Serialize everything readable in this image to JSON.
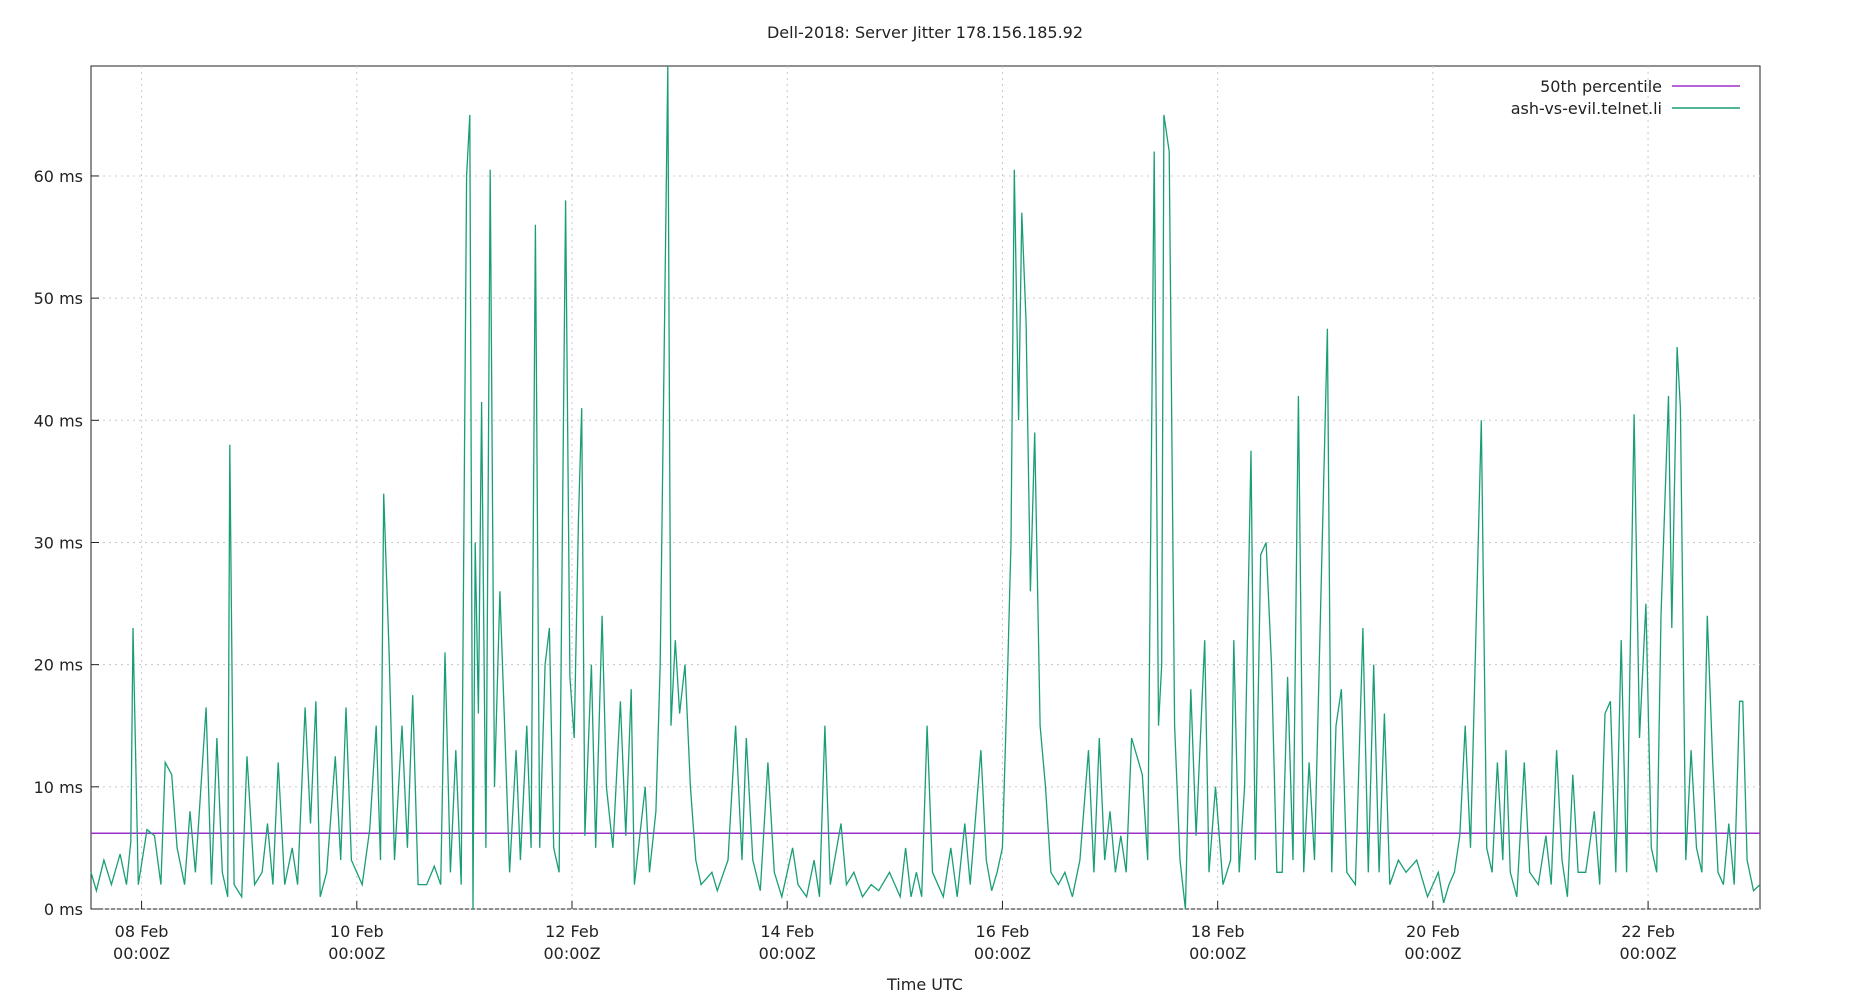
{
  "chart_data": {
    "type": "line",
    "title": "Dell-2018: Server Jitter 178.156.185.92",
    "x_label": "Time UTC",
    "xlim": [
      7.53,
      23.04
    ],
    "ylim": [
      0,
      69
    ],
    "grid": true,
    "legend": "top-right",
    "xticks": [
      {
        "value": 8,
        "label": "08 Feb\n00:00Z"
      },
      {
        "value": 10,
        "label": "10 Feb\n00:00Z"
      },
      {
        "value": 12,
        "label": "12 Feb\n00:00Z"
      },
      {
        "value": 14,
        "label": "14 Feb\n00:00Z"
      },
      {
        "value": 16,
        "label": "16 Feb\n00:00Z"
      },
      {
        "value": 18,
        "label": "18 Feb\n00:00Z"
      },
      {
        "value": 20,
        "label": "20 Feb\n00:00Z"
      },
      {
        "value": 22,
        "label": "22 Feb\n00:00Z"
      }
    ],
    "yticks": [
      {
        "value": 0,
        "label": "0 ms"
      },
      {
        "value": 10,
        "label": "10 ms"
      },
      {
        "value": 20,
        "label": "20 ms"
      },
      {
        "value": 30,
        "label": "30 ms"
      },
      {
        "value": 40,
        "label": "40 ms"
      },
      {
        "value": 50,
        "label": "50 ms"
      },
      {
        "value": 60,
        "label": "60 ms"
      }
    ],
    "percentile": {
      "name": "50th percentile",
      "color": "#9b30c8",
      "value": 6.2
    },
    "series": [
      {
        "name": "ash-vs-evil.telnet.li",
        "color": "#1a9e77",
        "x": [
          7.53,
          7.58,
          7.65,
          7.72,
          7.8,
          7.86,
          7.9,
          7.92,
          7.97,
          8.05,
          8.12,
          8.18,
          8.22,
          8.28,
          8.33,
          8.4,
          8.45,
          8.5,
          8.6,
          8.65,
          8.7,
          8.75,
          8.8,
          8.82,
          8.86,
          8.93,
          8.98,
          9.05,
          9.12,
          9.17,
          9.22,
          9.27,
          9.33,
          9.4,
          9.45,
          9.52,
          9.57,
          9.62,
          9.66,
          9.72,
          9.8,
          9.85,
          9.9,
          9.95,
          10.05,
          10.12,
          10.18,
          10.22,
          10.25,
          10.3,
          10.35,
          10.42,
          10.47,
          10.52,
          10.57,
          10.65,
          10.72,
          10.78,
          10.82,
          10.87,
          10.92,
          10.97,
          11.02,
          11.05,
          11.08,
          11.1,
          11.13,
          11.16,
          11.2,
          11.24,
          11.28,
          11.33,
          11.37,
          11.42,
          11.48,
          11.52,
          11.58,
          11.62,
          11.66,
          11.7,
          11.75,
          11.79,
          11.83,
          11.88,
          11.94,
          11.98,
          12.02,
          12.06,
          12.09,
          12.12,
          12.18,
          12.22,
          12.28,
          12.32,
          12.38,
          12.45,
          12.5,
          12.55,
          12.58,
          12.63,
          12.68,
          12.72,
          12.78,
          12.82,
          12.89,
          12.92,
          12.96,
          13.0,
          13.05,
          13.1,
          13.15,
          13.2,
          13.3,
          13.35,
          13.45,
          13.52,
          13.58,
          13.62,
          13.68,
          13.75,
          13.82,
          13.88,
          13.95,
          14.0,
          14.05,
          14.1,
          14.18,
          14.25,
          14.3,
          14.35,
          14.4,
          14.5,
          14.55,
          14.62,
          14.7,
          14.78,
          14.85,
          14.95,
          15.05,
          15.1,
          15.15,
          15.2,
          15.25,
          15.3,
          15.35,
          15.45,
          15.52,
          15.58,
          15.65,
          15.7,
          15.8,
          15.85,
          15.9,
          15.95,
          16.0,
          16.05,
          16.08,
          16.11,
          16.15,
          16.18,
          16.22,
          16.26,
          16.3,
          16.35,
          16.4,
          16.45,
          16.52,
          16.58,
          16.65,
          16.72,
          16.8,
          16.85,
          16.9,
          16.95,
          17.0,
          17.05,
          17.1,
          17.15,
          17.2,
          17.3,
          17.35,
          17.41,
          17.45,
          17.48,
          17.5,
          17.55,
          17.6,
          17.65,
          17.7,
          17.75,
          17.8,
          17.88,
          17.92,
          17.98,
          18.05,
          18.12,
          18.15,
          18.2,
          18.25,
          18.31,
          18.35,
          18.4,
          18.45,
          18.5,
          18.55,
          18.6,
          18.65,
          18.7,
          18.75,
          18.8,
          18.85,
          18.9,
          19.02,
          19.06,
          19.1,
          19.15,
          19.2,
          19.28,
          19.35,
          19.4,
          19.45,
          19.5,
          19.55,
          19.6,
          19.68,
          19.75,
          19.85,
          19.95,
          20.0,
          20.05,
          20.1,
          20.15,
          20.2,
          20.25,
          20.3,
          20.35,
          20.45,
          20.5,
          20.55,
          20.6,
          20.65,
          20.68,
          20.72,
          20.78,
          20.85,
          20.9,
          20.98,
          21.05,
          21.1,
          21.15,
          21.2,
          21.25,
          21.3,
          21.35,
          21.42,
          21.5,
          21.55,
          21.6,
          21.65,
          21.7,
          21.75,
          21.8,
          21.87,
          21.92,
          21.98,
          22.03,
          22.08,
          22.12,
          22.19,
          22.22,
          22.27,
          22.3,
          22.35,
          22.4,
          22.45,
          22.5,
          22.55,
          22.6,
          22.65,
          22.7,
          22.75,
          22.8,
          22.85,
          22.88,
          22.92,
          22.98,
          23.04
        ],
        "values": [
          3,
          1.5,
          4,
          2,
          4.5,
          2,
          5.5,
          23,
          2,
          6.5,
          6,
          2,
          12,
          11,
          5,
          2,
          8,
          3,
          16.5,
          2,
          14,
          3,
          1,
          38,
          2,
          1,
          12.5,
          2,
          3,
          7,
          2,
          12,
          2,
          5,
          2,
          16.5,
          7,
          17,
          1,
          3,
          12.5,
          4,
          16.5,
          4,
          2,
          6.5,
          15,
          4,
          34,
          21,
          4,
          15,
          5,
          17.5,
          2,
          2,
          3.5,
          2,
          21,
          3,
          13,
          2,
          60,
          65,
          0,
          30,
          16,
          41.5,
          5,
          60.5,
          10,
          26,
          16,
          3,
          13,
          4,
          15,
          5,
          56,
          5,
          20,
          23,
          5,
          3,
          58,
          19,
          14,
          32,
          41,
          6,
          20,
          5,
          24,
          10,
          5,
          17,
          6,
          18,
          2,
          6,
          10,
          3,
          8,
          20,
          69,
          15,
          22,
          16,
          20,
          10,
          4,
          2,
          3,
          1.5,
          4,
          15,
          4,
          14,
          4,
          1.5,
          12,
          3,
          1,
          3,
          5,
          2,
          1,
          4,
          1,
          15,
          2,
          7,
          2,
          3,
          1,
          2,
          1.5,
          3,
          1,
          5,
          1,
          3,
          1,
          15,
          3,
          1,
          5,
          1,
          7,
          2,
          13,
          4,
          1.5,
          3,
          5,
          20,
          30,
          60.5,
          40,
          57,
          48,
          26,
          39,
          15,
          10,
          3,
          2,
          3,
          1,
          4,
          13,
          3,
          14,
          4,
          8,
          3,
          6,
          3,
          14,
          11,
          4,
          62,
          15,
          20,
          65,
          62,
          15,
          4,
          0,
          18,
          6,
          22,
          3,
          10,
          2,
          4,
          22,
          3,
          10,
          37.5,
          4,
          29,
          30,
          20,
          3,
          3,
          19,
          4,
          42,
          3,
          12,
          4,
          47.5,
          3,
          15,
          18,
          3,
          2,
          23,
          3,
          20,
          3,
          16,
          2,
          4,
          3,
          4,
          1,
          2,
          3,
          0.5,
          2,
          3,
          6,
          15,
          5,
          40,
          5,
          3,
          12,
          4,
          13,
          3,
          1,
          12,
          3,
          2,
          6,
          2,
          13,
          4,
          1,
          11,
          3,
          3,
          8,
          2,
          16,
          17,
          3,
          22,
          3,
          40.5,
          14,
          25,
          5,
          3,
          24,
          42,
          23,
          46,
          41,
          4,
          13,
          5,
          3,
          24,
          12,
          3,
          2,
          7,
          2,
          17,
          17,
          4,
          1.5,
          2
        ]
      }
    ]
  }
}
